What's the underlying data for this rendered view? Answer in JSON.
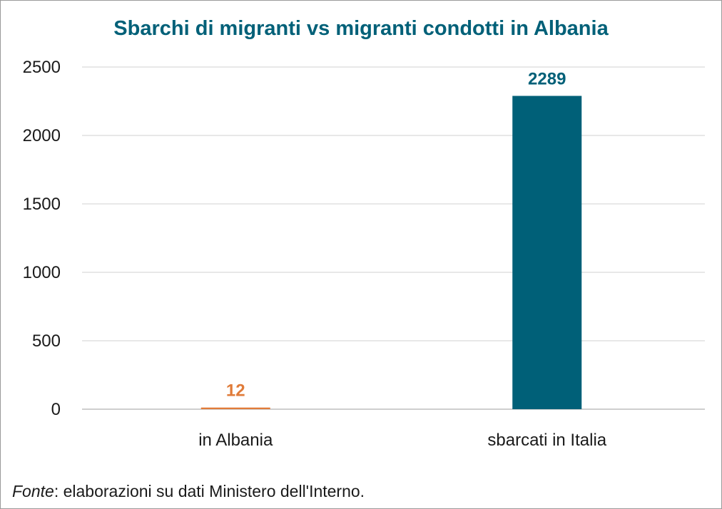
{
  "chart_data": {
    "type": "bar",
    "title": "Sbarchi di migranti vs migranti condotti in Albania",
    "categories": [
      "in Albania",
      "sbarcati in Italia"
    ],
    "values": [
      12,
      2289
    ],
    "bar_colors": [
      "#E07B39",
      "#006078"
    ],
    "data_labels": [
      "12",
      "2289"
    ],
    "xlabel": "",
    "ylabel": "",
    "ylim": [
      0,
      2500
    ],
    "yticks": [
      0,
      500,
      1000,
      1500,
      2000,
      2500
    ],
    "ytick_labels": [
      "0",
      "500",
      "1000",
      "1500",
      "2000",
      "2500"
    ],
    "grid": true,
    "legend": "none"
  },
  "source": {
    "label": "Fonte",
    "text": ": elaborazioni su dati Ministero dell'Interno."
  },
  "colors": {
    "title": "#006078",
    "grid": "#d9d9d9",
    "axis": "#bfbfbf",
    "text": "#1a1a1a"
  }
}
